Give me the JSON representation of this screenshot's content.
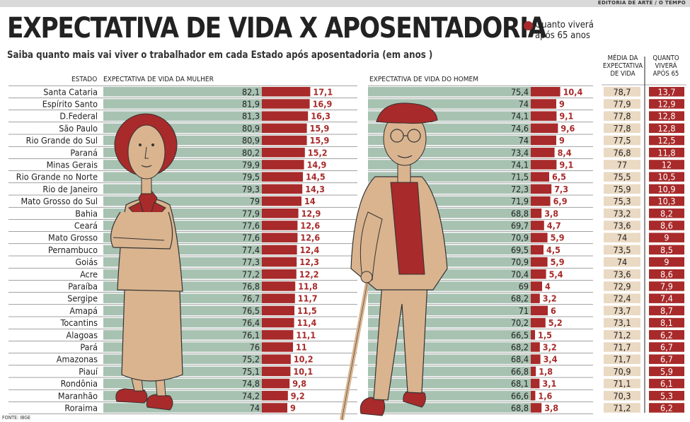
{
  "credit": "EDITORIA DE ARTE / O TEMPO",
  "title": "EXPECTATIVA DE VIDA X APOSENTADORIA",
  "subtitle": "Saiba quanto mais vai viver o trabalhador em cada Estado após aposentadoria (em anos )",
  "legend": {
    "label": "Quanto viverá após 65 anos",
    "color": "#a82a2a"
  },
  "headers": {
    "state": "ESTADO",
    "women": "EXPECTATIVA DE VIDA DA MULHER",
    "men": "EXPECTATIVA DE VIDA DO HOMEM",
    "avg_lines": [
      "MÉDIA DA",
      "EXPECTATIVA",
      "DE VIDA"
    ],
    "after_lines": [
      "QUANTO",
      "VIVERÁ",
      "APÓS 65"
    ]
  },
  "source": "FONTE: IBGE",
  "colors": {
    "bar": "#a8c2b2",
    "accent": "#a82a2a",
    "avg_cell": "#ead9c3",
    "figure_skin": "#d9b48f",
    "figure_red": "#a82a2a"
  },
  "chart_data": {
    "type": "table",
    "baseline_age": 65,
    "columns": [
      "Estado",
      "Expectativa de vida da mulher",
      "Quanto viverá após 65 (mulher)",
      "Expectativa de vida do homem",
      "Quanto viverá após 65 (homem)",
      "Média da expectativa de vida",
      "Quanto viverá após 65"
    ],
    "rows": [
      {
        "state": "Santa Cataria",
        "female": "82,1",
        "female_after": "17,1",
        "male": "75,4",
        "male_after": "10,4",
        "avg": "78,7",
        "avg_after": "13,7"
      },
      {
        "state": "Espírito Santo",
        "female": "81,9",
        "female_after": "16,9",
        "male": "74",
        "male_after": "9",
        "avg": "77,9",
        "avg_after": "12,9"
      },
      {
        "state": "D.Federal",
        "female": "81,3",
        "female_after": "16,3",
        "male": "74,1",
        "male_after": "9,1",
        "avg": "77,8",
        "avg_after": "12,8"
      },
      {
        "state": "São Paulo",
        "female": "80,9",
        "female_after": "15,9",
        "male": "74,6",
        "male_after": "9,6",
        "avg": "77,8",
        "avg_after": "12,8"
      },
      {
        "state": "Rio Grande do Sul",
        "female": "80,9",
        "female_after": "15,9",
        "male": "74",
        "male_after": "9",
        "avg": "77,5",
        "avg_after": "12,5"
      },
      {
        "state": "Paraná",
        "female": "80,2",
        "female_after": "15,2",
        "male": "73,4",
        "male_after": "8,4",
        "avg": "76,8",
        "avg_after": "11,8"
      },
      {
        "state": "Minas Gerais",
        "female": "79,9",
        "female_after": "14,9",
        "male": "74,1",
        "male_after": "9,1",
        "avg": "77",
        "avg_after": "12"
      },
      {
        "state": "Rio Grande no Norte",
        "female": "79,5",
        "female_after": "14,5",
        "male": "71,5",
        "male_after": "6,5",
        "avg": "75,5",
        "avg_after": "10,5"
      },
      {
        "state": "Rio de Janeiro",
        "female": "79,3",
        "female_after": "14,3",
        "male": "72,3",
        "male_after": "7,3",
        "avg": "75,9",
        "avg_after": "10,9"
      },
      {
        "state": "Mato Grosso do Sul",
        "female": "79",
        "female_after": "14",
        "male": "71,9",
        "male_after": "6,9",
        "avg": "75,3",
        "avg_after": "10,3"
      },
      {
        "state": "Bahia",
        "female": "77,9",
        "female_after": "12,9",
        "male": "68,8",
        "male_after": "3,8",
        "avg": "73,2",
        "avg_after": "8,2"
      },
      {
        "state": "Ceará",
        "female": "77,6",
        "female_after": "12,6",
        "male": "69,7",
        "male_after": "4,7",
        "avg": "73,6",
        "avg_after": "8,6"
      },
      {
        "state": "Mato Grosso",
        "female": "77,6",
        "female_after": "12,6",
        "male": "70,9",
        "male_after": "5,9",
        "avg": "74",
        "avg_after": "9"
      },
      {
        "state": "Pernambuco",
        "female": "77,4",
        "female_after": "12,4",
        "male": "69,5",
        "male_after": "4,5",
        "avg": "73,5",
        "avg_after": "8,5"
      },
      {
        "state": "Goiás",
        "female": "77,3",
        "female_after": "12,3",
        "male": "70,9",
        "male_after": "5,9",
        "avg": "74",
        "avg_after": "9"
      },
      {
        "state": "Acre",
        "female": "77,2",
        "female_after": "12,2",
        "male": "70,4",
        "male_after": "5,4",
        "avg": "73,6",
        "avg_after": "8,6"
      },
      {
        "state": "Paraíba",
        "female": "76,8",
        "female_after": "11,8",
        "male": "69",
        "male_after": "4",
        "avg": "72,9",
        "avg_after": "7,9"
      },
      {
        "state": "Sergipe",
        "female": "76,7",
        "female_after": "11,7",
        "male": "68,2",
        "male_after": "3,2",
        "avg": "72,4",
        "avg_after": "7,4"
      },
      {
        "state": "Amapá",
        "female": "76,5",
        "female_after": "11,5",
        "male": "71",
        "male_after": "6",
        "avg": "73,7",
        "avg_after": "8,7"
      },
      {
        "state": "Tocantins",
        "female": "76,4",
        "female_after": "11,4",
        "male": "70,2",
        "male_after": "5,2",
        "avg": "73,1",
        "avg_after": "8,1"
      },
      {
        "state": "Alagoas",
        "female": "76,1",
        "female_after": "11,1",
        "male": "66,5",
        "male_after": "1,5",
        "avg": "71,2",
        "avg_after": "6,2"
      },
      {
        "state": "Pará",
        "female": "76",
        "female_after": "11",
        "male": "68,2",
        "male_after": "3,2",
        "avg": "71,7",
        "avg_after": "6,7"
      },
      {
        "state": "Amazonas",
        "female": "75,2",
        "female_after": "10,2",
        "male": "68,4",
        "male_after": "3,4",
        "avg": "71,7",
        "avg_after": "6,7"
      },
      {
        "state": "Piauí",
        "female": "75,1",
        "female_after": "10,1",
        "male": "66,8",
        "male_after": "1,8",
        "avg": "70,9",
        "avg_after": "5,9"
      },
      {
        "state": "Rondônia",
        "female": "74,8",
        "female_after": "9,8",
        "male": "68,1",
        "male_after": "3,1",
        "avg": "71,1",
        "avg_after": "6,1"
      },
      {
        "state": "Maranhão",
        "female": "74,2",
        "female_after": "9,2",
        "male": "66,6",
        "male_after": "1,6",
        "avg": "70,3",
        "avg_after": "5,3"
      },
      {
        "state": "Roraima",
        "female": "74",
        "female_after": "9",
        "male": "68,8",
        "male_after": "3,8",
        "avg": "71,2",
        "avg_after": "6,2"
      }
    ]
  }
}
